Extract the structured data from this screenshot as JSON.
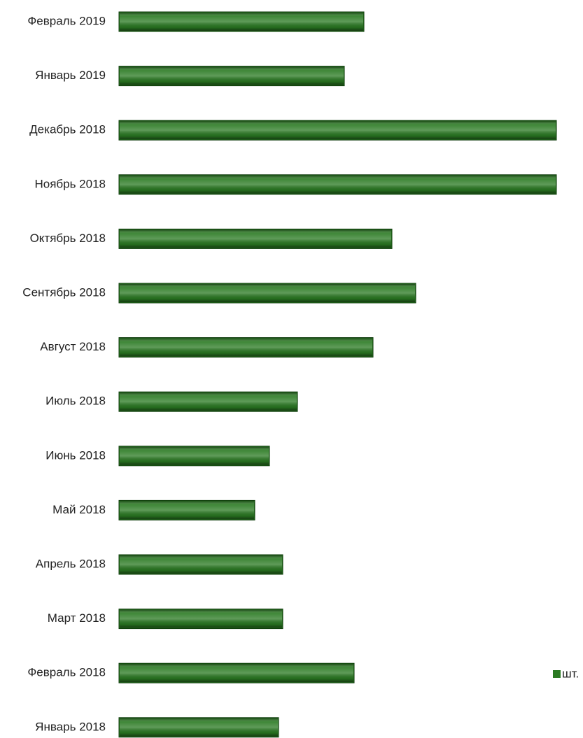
{
  "chart_data": {
    "type": "hbar",
    "categories": [
      "Февраль 2019",
      "Январь 2019",
      "Декабрь 2018",
      "Ноябрь 2018",
      "Октябрь 2018",
      "Сентябрь 2018",
      "Август 2018",
      "Июль 2018",
      "Июнь 2018",
      "Май 2018",
      "Апрель 2018",
      "Март 2018",
      "Февраль 2018",
      "Январь 2018"
    ],
    "series": [
      {
        "name": "шт.",
        "color": "#2a7a22",
        "values": [
          350,
          322,
          625,
          625,
          390,
          424,
          363,
          255,
          215,
          194,
          234,
          234,
          336,
          228
        ]
      }
    ],
    "xlim": [
      0,
      640
    ],
    "legend": "right"
  }
}
